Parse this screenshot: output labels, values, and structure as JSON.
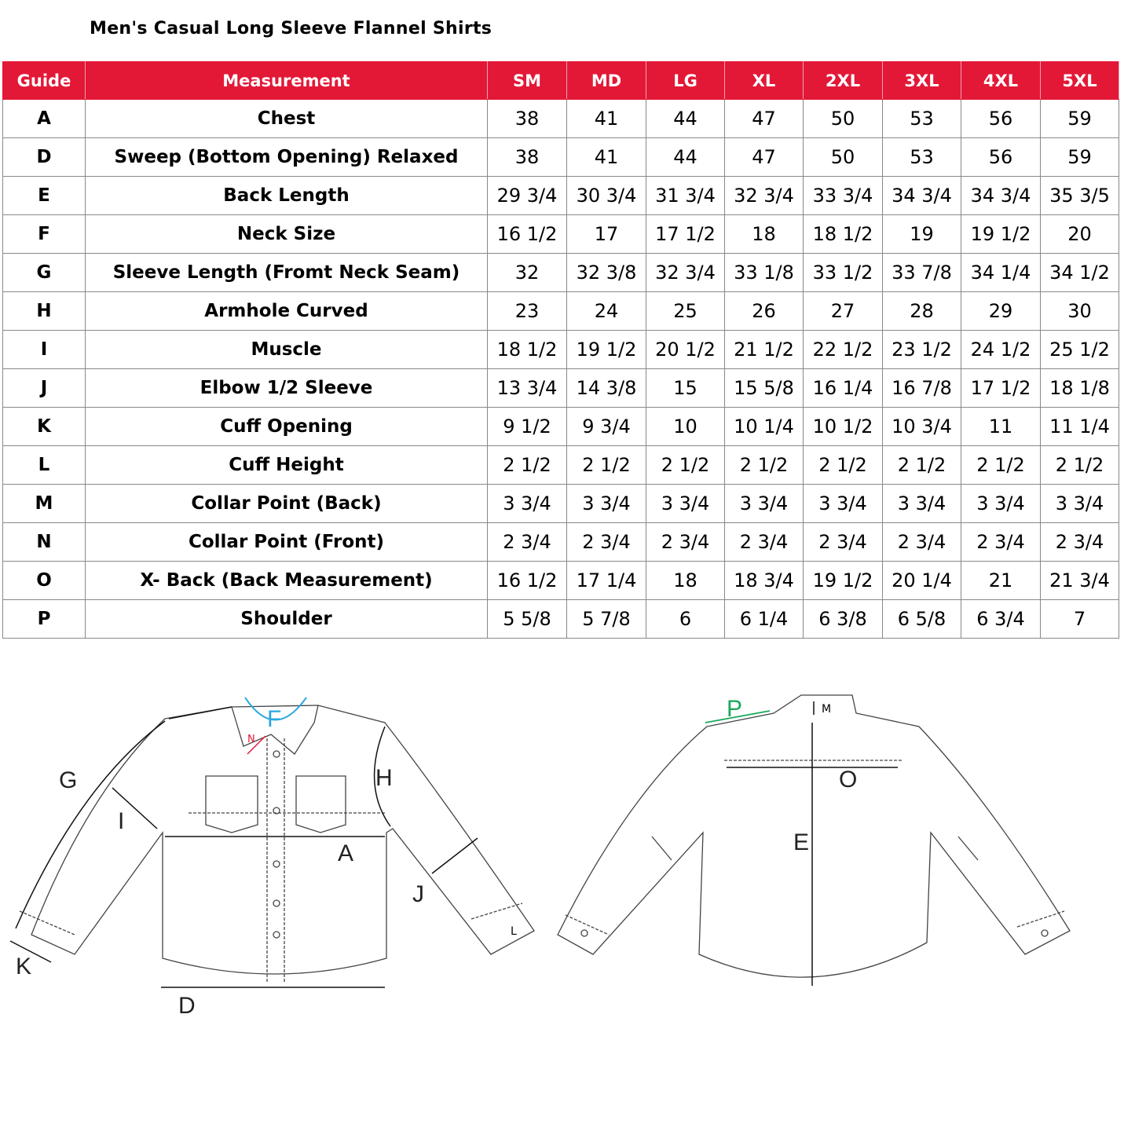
{
  "title": "Men's Casual Long Sleeve Flannel Shirts",
  "header": {
    "guide": "Guide",
    "measurement": "Measurement",
    "sizes": [
      "SM",
      "MD",
      "LG",
      "XL",
      "2XL",
      "3XL",
      "4XL",
      "5XL"
    ]
  },
  "rows": [
    {
      "guide": "A",
      "measurement": "Chest",
      "values": [
        "38",
        "41",
        "44",
        "47",
        "50",
        "53",
        "56",
        "59"
      ]
    },
    {
      "guide": "D",
      "measurement": "Sweep (Bottom Opening)  Relaxed",
      "values": [
        "38",
        "41",
        "44",
        "47",
        "50",
        "53",
        "56",
        "59"
      ]
    },
    {
      "guide": "E",
      "measurement": "Back Length",
      "values": [
        "29 3/4",
        "30 3/4",
        "31 3/4",
        "32 3/4",
        "33 3/4",
        "34 3/4",
        "34 3/4",
        "35 3/5"
      ]
    },
    {
      "guide": "F",
      "measurement": "Neck Size",
      "values": [
        "16 1/2",
        "17",
        "17 1/2",
        "18",
        "18 1/2",
        "19",
        "19 1/2",
        "20"
      ]
    },
    {
      "guide": "G",
      "measurement": "Sleeve Length (Fromt Neck Seam)",
      "values": [
        "32",
        "32 3/8",
        "32 3/4",
        "33 1/8",
        "33 1/2",
        "33 7/8",
        "34 1/4",
        "34 1/2"
      ]
    },
    {
      "guide": "H",
      "measurement": "Armhole Curved",
      "values": [
        "23",
        "24",
        "25",
        "26",
        "27",
        "28",
        "29",
        "30"
      ]
    },
    {
      "guide": "I",
      "measurement": "Muscle",
      "values": [
        "18 1/2",
        "19 1/2",
        "20 1/2",
        "21 1/2",
        "22 1/2",
        "23 1/2",
        "24 1/2",
        "25 1/2"
      ]
    },
    {
      "guide": "J",
      "measurement": "Elbow 1/2 Sleeve",
      "values": [
        "13 3/4",
        "14 3/8",
        "15",
        "15 5/8",
        "16 1/4",
        "16 7/8",
        "17 1/2",
        "18 1/8"
      ]
    },
    {
      "guide": "K",
      "measurement": "Cuff Opening",
      "values": [
        "9 1/2",
        "9 3/4",
        "10",
        "10 1/4",
        "10 1/2",
        "10 3/4",
        "11",
        "11 1/4"
      ]
    },
    {
      "guide": "L",
      "measurement": "Cuff Height",
      "values": [
        "2 1/2",
        "2 1/2",
        "2 1/2",
        "2 1/2",
        "2 1/2",
        "2 1/2",
        "2 1/2",
        "2 1/2"
      ]
    },
    {
      "guide": "M",
      "measurement": "Collar Point (Back)",
      "values": [
        "3 3/4",
        "3 3/4",
        "3 3/4",
        "3 3/4",
        "3 3/4",
        "3 3/4",
        "3 3/4",
        "3 3/4"
      ]
    },
    {
      "guide": "N",
      "measurement": "Collar Point (Front)",
      "values": [
        "2 3/4",
        "2 3/4",
        "2 3/4",
        "2 3/4",
        "2 3/4",
        "2 3/4",
        "2 3/4",
        "2 3/4"
      ]
    },
    {
      "guide": "O",
      "measurement": "X- Back (Back Measurement)",
      "values": [
        "16 1/2",
        "17 1/4",
        "18",
        "18 3/4",
        "19 1/2",
        "20 1/4",
        "21",
        "21 3/4"
      ]
    },
    {
      "guide": "P",
      "measurement": "Shoulder",
      "values": [
        "5 5/8",
        "5 7/8",
        "6",
        "6 1/4",
        "6 3/8",
        "6 5/8",
        "6 3/4",
        "7"
      ]
    }
  ],
  "colors": {
    "header_bg": "#e31837",
    "neck_F": "#29a8e0",
    "collar_N": "#e31837",
    "shoulder_P": "#1aa85a"
  },
  "diagram": {
    "front_labels": {
      "F": "F",
      "N": "N",
      "G": "G",
      "H": "H",
      "I": "I",
      "A": "A",
      "J": "J",
      "K": "K",
      "L": "L",
      "D": "D"
    },
    "back_labels": {
      "P": "P",
      "M": "M",
      "O": "O",
      "E": "E"
    }
  }
}
